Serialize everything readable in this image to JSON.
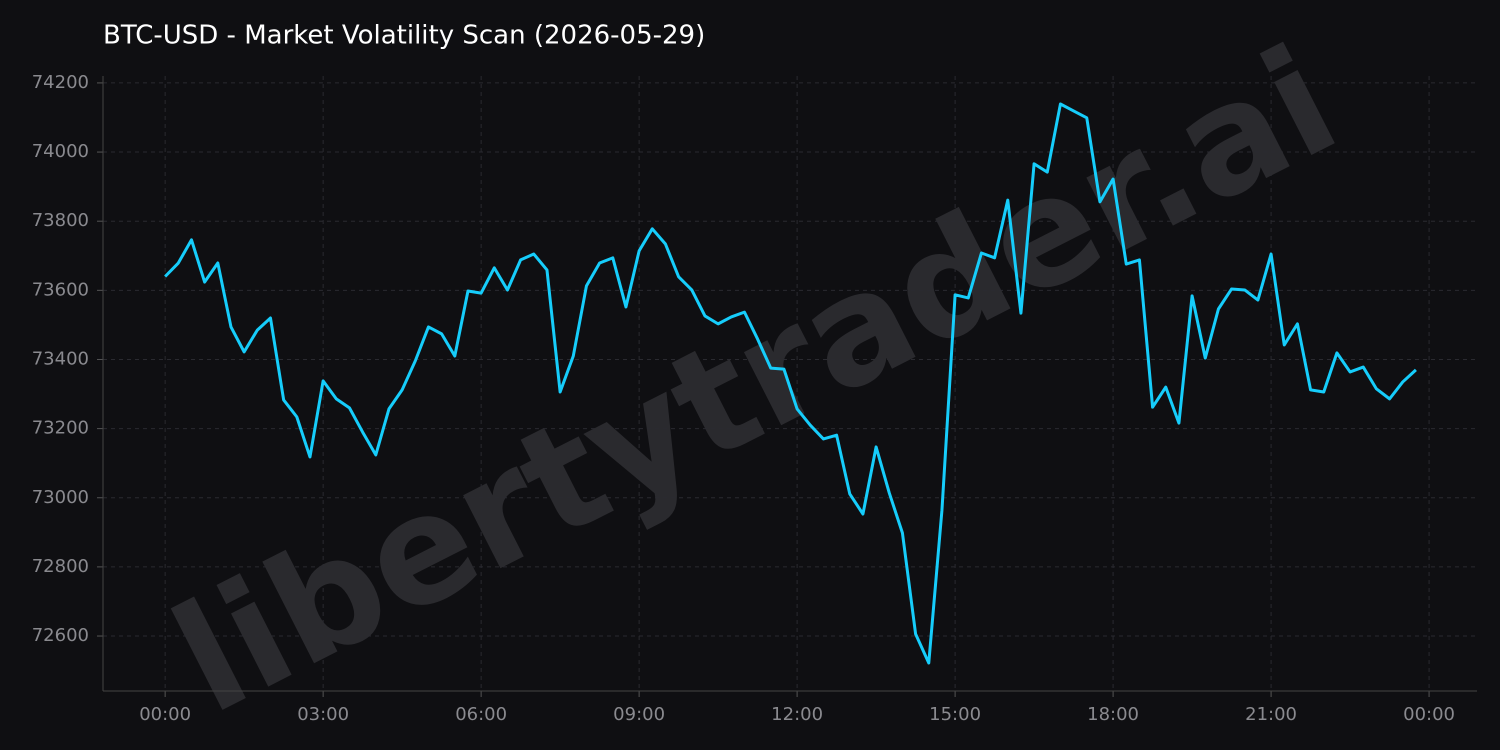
{
  "chart_data": {
    "type": "line",
    "title": "BTC-USD - Market Volatility Scan (2026-05-29)",
    "watermark": "libertytrader.ai",
    "x": [
      0,
      0.25,
      0.5,
      0.75,
      1,
      1.25,
      1.5,
      1.75,
      2,
      2.25,
      2.5,
      2.75,
      3,
      3.25,
      3.5,
      3.75,
      4,
      4.25,
      4.5,
      4.75,
      5,
      5.25,
      5.5,
      5.75,
      6,
      6.25,
      6.5,
      6.75,
      7,
      7.25,
      7.5,
      7.75,
      8,
      8.25,
      8.5,
      8.75,
      9,
      9.25,
      9.5,
      9.75,
      10,
      10.25,
      10.5,
      10.75,
      11,
      11.25,
      11.5,
      11.75,
      12,
      12.25,
      12.5,
      12.75,
      13,
      13.25,
      13.5,
      13.75,
      14,
      14.25,
      14.5,
      14.75,
      15,
      15.25,
      15.5,
      15.75,
      16,
      16.25,
      16.5,
      16.75,
      17,
      17.25,
      17.5,
      17.75,
      18,
      18.25,
      18.5,
      18.75,
      19,
      19.25,
      19.5,
      19.75,
      20,
      20.25,
      20.5,
      20.75,
      21,
      21.25,
      21.5,
      21.75,
      22,
      22.25,
      22.5,
      22.75,
      23,
      23.25,
      23.5,
      23.75
    ],
    "series": [
      {
        "name": "BTC-USD",
        "color": "#16cdfb",
        "values": [
          73640,
          73679,
          73746,
          73624,
          73679,
          73494,
          73422,
          73485,
          73520,
          73283,
          73234,
          73118,
          73338,
          73286,
          73260,
          73190,
          73124,
          73257,
          73312,
          73396,
          73494,
          73474,
          73410,
          73598,
          73592,
          73665,
          73601,
          73688,
          73705,
          73659,
          73306,
          73410,
          73613,
          73679,
          73694,
          73552,
          73714,
          73778,
          73734,
          73639,
          73601,
          73526,
          73503,
          73523,
          73537,
          73459,
          73375,
          73372,
          73257,
          73210,
          73170,
          73181,
          73011,
          72953,
          73147,
          73014,
          72898,
          72606,
          72522,
          72964,
          73587,
          73578,
          73708,
          73694,
          73861,
          73534,
          73966,
          73942,
          74139,
          74119,
          74099,
          73856,
          73922,
          73676,
          73688,
          73262,
          73320,
          73216,
          73584,
          73404,
          73546,
          73604,
          73601,
          73572,
          73705,
          73442,
          73503,
          73312,
          73306,
          73419,
          73364,
          73378,
          73315,
          73286,
          73335,
          73370
        ]
      }
    ],
    "xlim": [
      -1.18,
      24.91
    ],
    "xticks": [
      {
        "value": 0,
        "label": "00:00"
      },
      {
        "value": 3,
        "label": "03:00"
      },
      {
        "value": 6,
        "label": "06:00"
      },
      {
        "value": 9,
        "label": "09:00"
      },
      {
        "value": 12,
        "label": "12:00"
      },
      {
        "value": 15,
        "label": "15:00"
      },
      {
        "value": 18,
        "label": "18:00"
      },
      {
        "value": 21,
        "label": "21:00"
      },
      {
        "value": 24,
        "label": "00:00"
      }
    ],
    "ylim": [
      72441,
      74220
    ],
    "yticks": [
      72600,
      72800,
      73000,
      73200,
      73400,
      73600,
      73800,
      74000,
      74200
    ],
    "grid": true
  }
}
